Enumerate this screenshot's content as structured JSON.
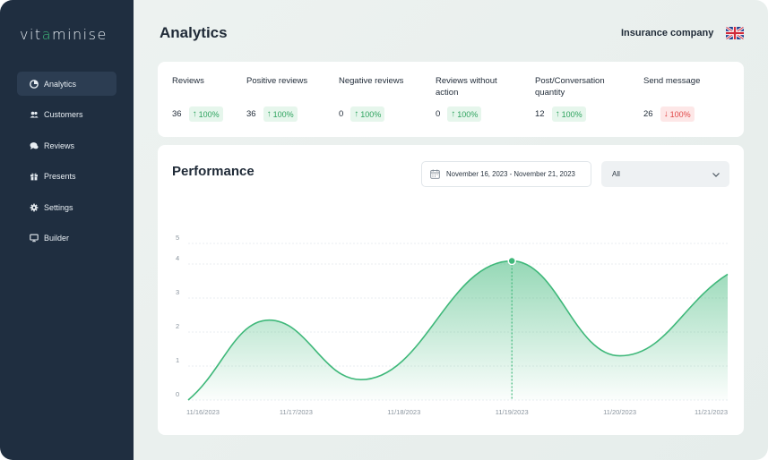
{
  "app": {
    "logo_prefix": "vit",
    "logo_leaf": "a",
    "logo_suffix": "minise"
  },
  "sidebar": {
    "items": [
      {
        "label": "Analytics",
        "icon": "analytics-icon",
        "active": true
      },
      {
        "label": "Customers",
        "icon": "customers-icon",
        "active": false
      },
      {
        "label": "Reviews",
        "icon": "reviews-icon",
        "active": false
      },
      {
        "label": "Presents",
        "icon": "gift-icon",
        "active": false
      },
      {
        "label": "Settings",
        "icon": "gear-icon",
        "active": false
      },
      {
        "label": "Builder",
        "icon": "monitor-icon",
        "active": false
      }
    ]
  },
  "header": {
    "title": "Analytics",
    "company": "Insurance company",
    "flag_icon": "uk-flag-icon"
  },
  "stats": [
    {
      "label": "Reviews",
      "value": "36",
      "change": "100%",
      "direction": "up"
    },
    {
      "label": "Positive reviews",
      "value": "36",
      "change": "100%",
      "direction": "up"
    },
    {
      "label": "Negative reviews",
      "value": "0",
      "change": "100%",
      "direction": "up"
    },
    {
      "label": "Reviews without action",
      "value": "0",
      "change": "100%",
      "direction": "up"
    },
    {
      "label": "Post/Conversation quantity",
      "value": "12",
      "change": "100%",
      "direction": "up"
    },
    {
      "label": "Send message",
      "value": "26",
      "change": "100%",
      "direction": "down"
    }
  ],
  "performance": {
    "title": "Performance",
    "date_range": "November 16, 2023 - November 21, 2023",
    "filter_value": "All"
  },
  "colors": {
    "sidebar_bg": "#1f2e40",
    "accent_green": "#3fb87a",
    "up_green": "#2fa35f",
    "down_red": "#e04848"
  },
  "chart_data": {
    "type": "area",
    "x": [
      "11/16/2023",
      "11/17/2023",
      "11/18/2023",
      "11/19/2023",
      "11/20/2023",
      "11/21/2023"
    ],
    "y_ticks": [
      0,
      1,
      2,
      3,
      4,
      5
    ],
    "ylim": [
      0,
      5
    ],
    "curve_points": [
      {
        "x": "11/16/2023",
        "y": 0.0
      },
      {
        "x_index": 0.75,
        "y": 2.35
      },
      {
        "x_index": 1.6,
        "y": 0.6
      },
      {
        "x": "11/19/2023",
        "y": 4.15
      },
      {
        "x_index": 4.0,
        "y": 1.3
      },
      {
        "x": "11/21/2023",
        "y": 3.7
      }
    ],
    "highlight_x": "11/19/2023",
    "grid": true
  }
}
